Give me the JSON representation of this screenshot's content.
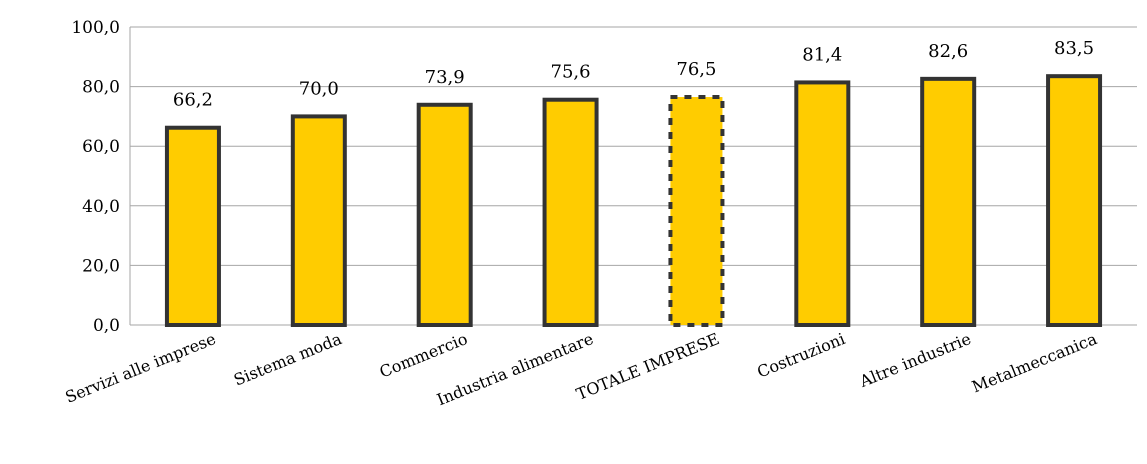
{
  "chart_data": {
    "type": "bar",
    "title": "",
    "xlabel": "",
    "ylabel": "",
    "categories": [
      "Servizi alle imprese",
      "Sistema moda",
      "Commercio",
      "Industria alimentare",
      "TOTALE IMPRESE",
      "Costruzioni",
      "Altre industrie",
      "Metalmeccanica"
    ],
    "values": [
      66.2,
      70.0,
      73.9,
      75.6,
      76.5,
      81.4,
      82.6,
      83.5
    ],
    "data_labels": [
      "66,2",
      "70,0",
      "73,9",
      "75,6",
      "76,5",
      "81,4",
      "82,6",
      "83,5"
    ],
    "highlighted_category": "TOTALE IMPRESE",
    "ylim": [
      0,
      100
    ],
    "yticks": [
      0,
      20,
      40,
      60,
      80,
      100
    ],
    "ytick_labels": [
      "0,0",
      "20,0",
      "40,0",
      "60,0",
      "80,0",
      "100,0"
    ],
    "grid": true,
    "legend": "none",
    "colors": {
      "bar_fill": "#FFCC00",
      "bar_border": "#333333",
      "grid": "#A6A6A6",
      "axis": "#A6A6A6"
    }
  }
}
